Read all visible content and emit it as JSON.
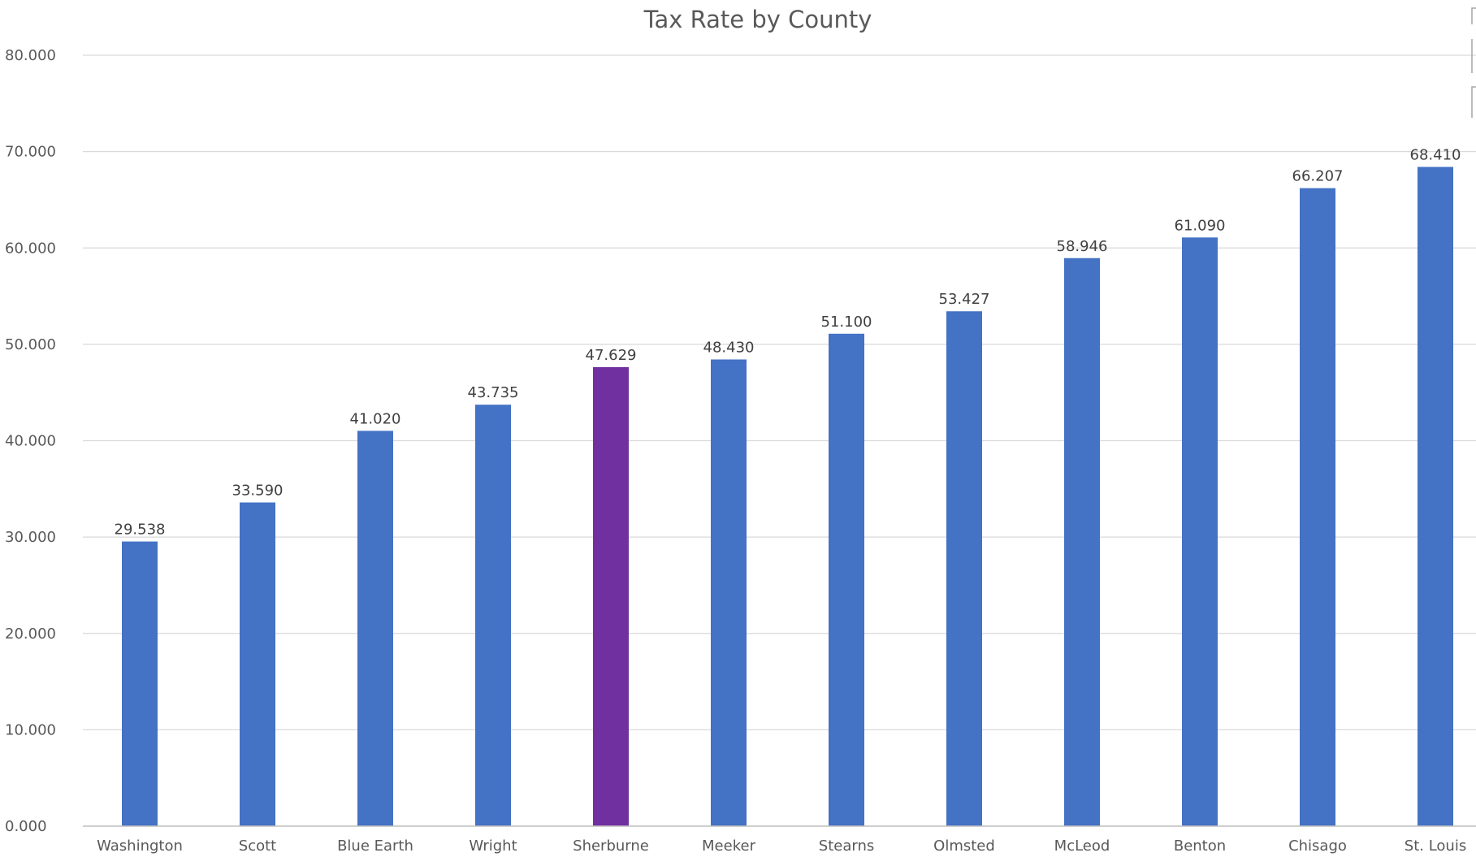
{
  "chart_data": {
    "type": "bar",
    "title": "Tax Rate by County",
    "xlabel": "",
    "ylabel": "",
    "ylim": [
      0,
      80
    ],
    "y_ticks": [
      "0.000",
      "10.000",
      "20.000",
      "30.000",
      "40.000",
      "50.000",
      "60.000",
      "70.000",
      "80.000"
    ],
    "y_tick_values": [
      0,
      10,
      20,
      30,
      40,
      50,
      60,
      70,
      80
    ],
    "categories": [
      "Washington",
      "Scott",
      "Blue Earth",
      "Wright",
      "Sherburne",
      "Meeker",
      "Stearns",
      "Olmsted",
      "McLeod",
      "Benton",
      "Chisago",
      "St. Louis"
    ],
    "values": [
      29.538,
      33.59,
      41.02,
      43.735,
      47.629,
      48.43,
      51.1,
      53.427,
      58.946,
      61.09,
      66.207,
      68.41
    ],
    "data_labels": [
      "29.538",
      "33.590",
      "41.020",
      "43.735",
      "47.629",
      "48.430",
      "51.100",
      "53.427",
      "58.946",
      "61.090",
      "66.207",
      "68.410"
    ],
    "bar_color": "#4472c4",
    "highlight_color": "#7030a0",
    "highlight_category": "Sherburne",
    "grid": true,
    "legend": "none"
  }
}
